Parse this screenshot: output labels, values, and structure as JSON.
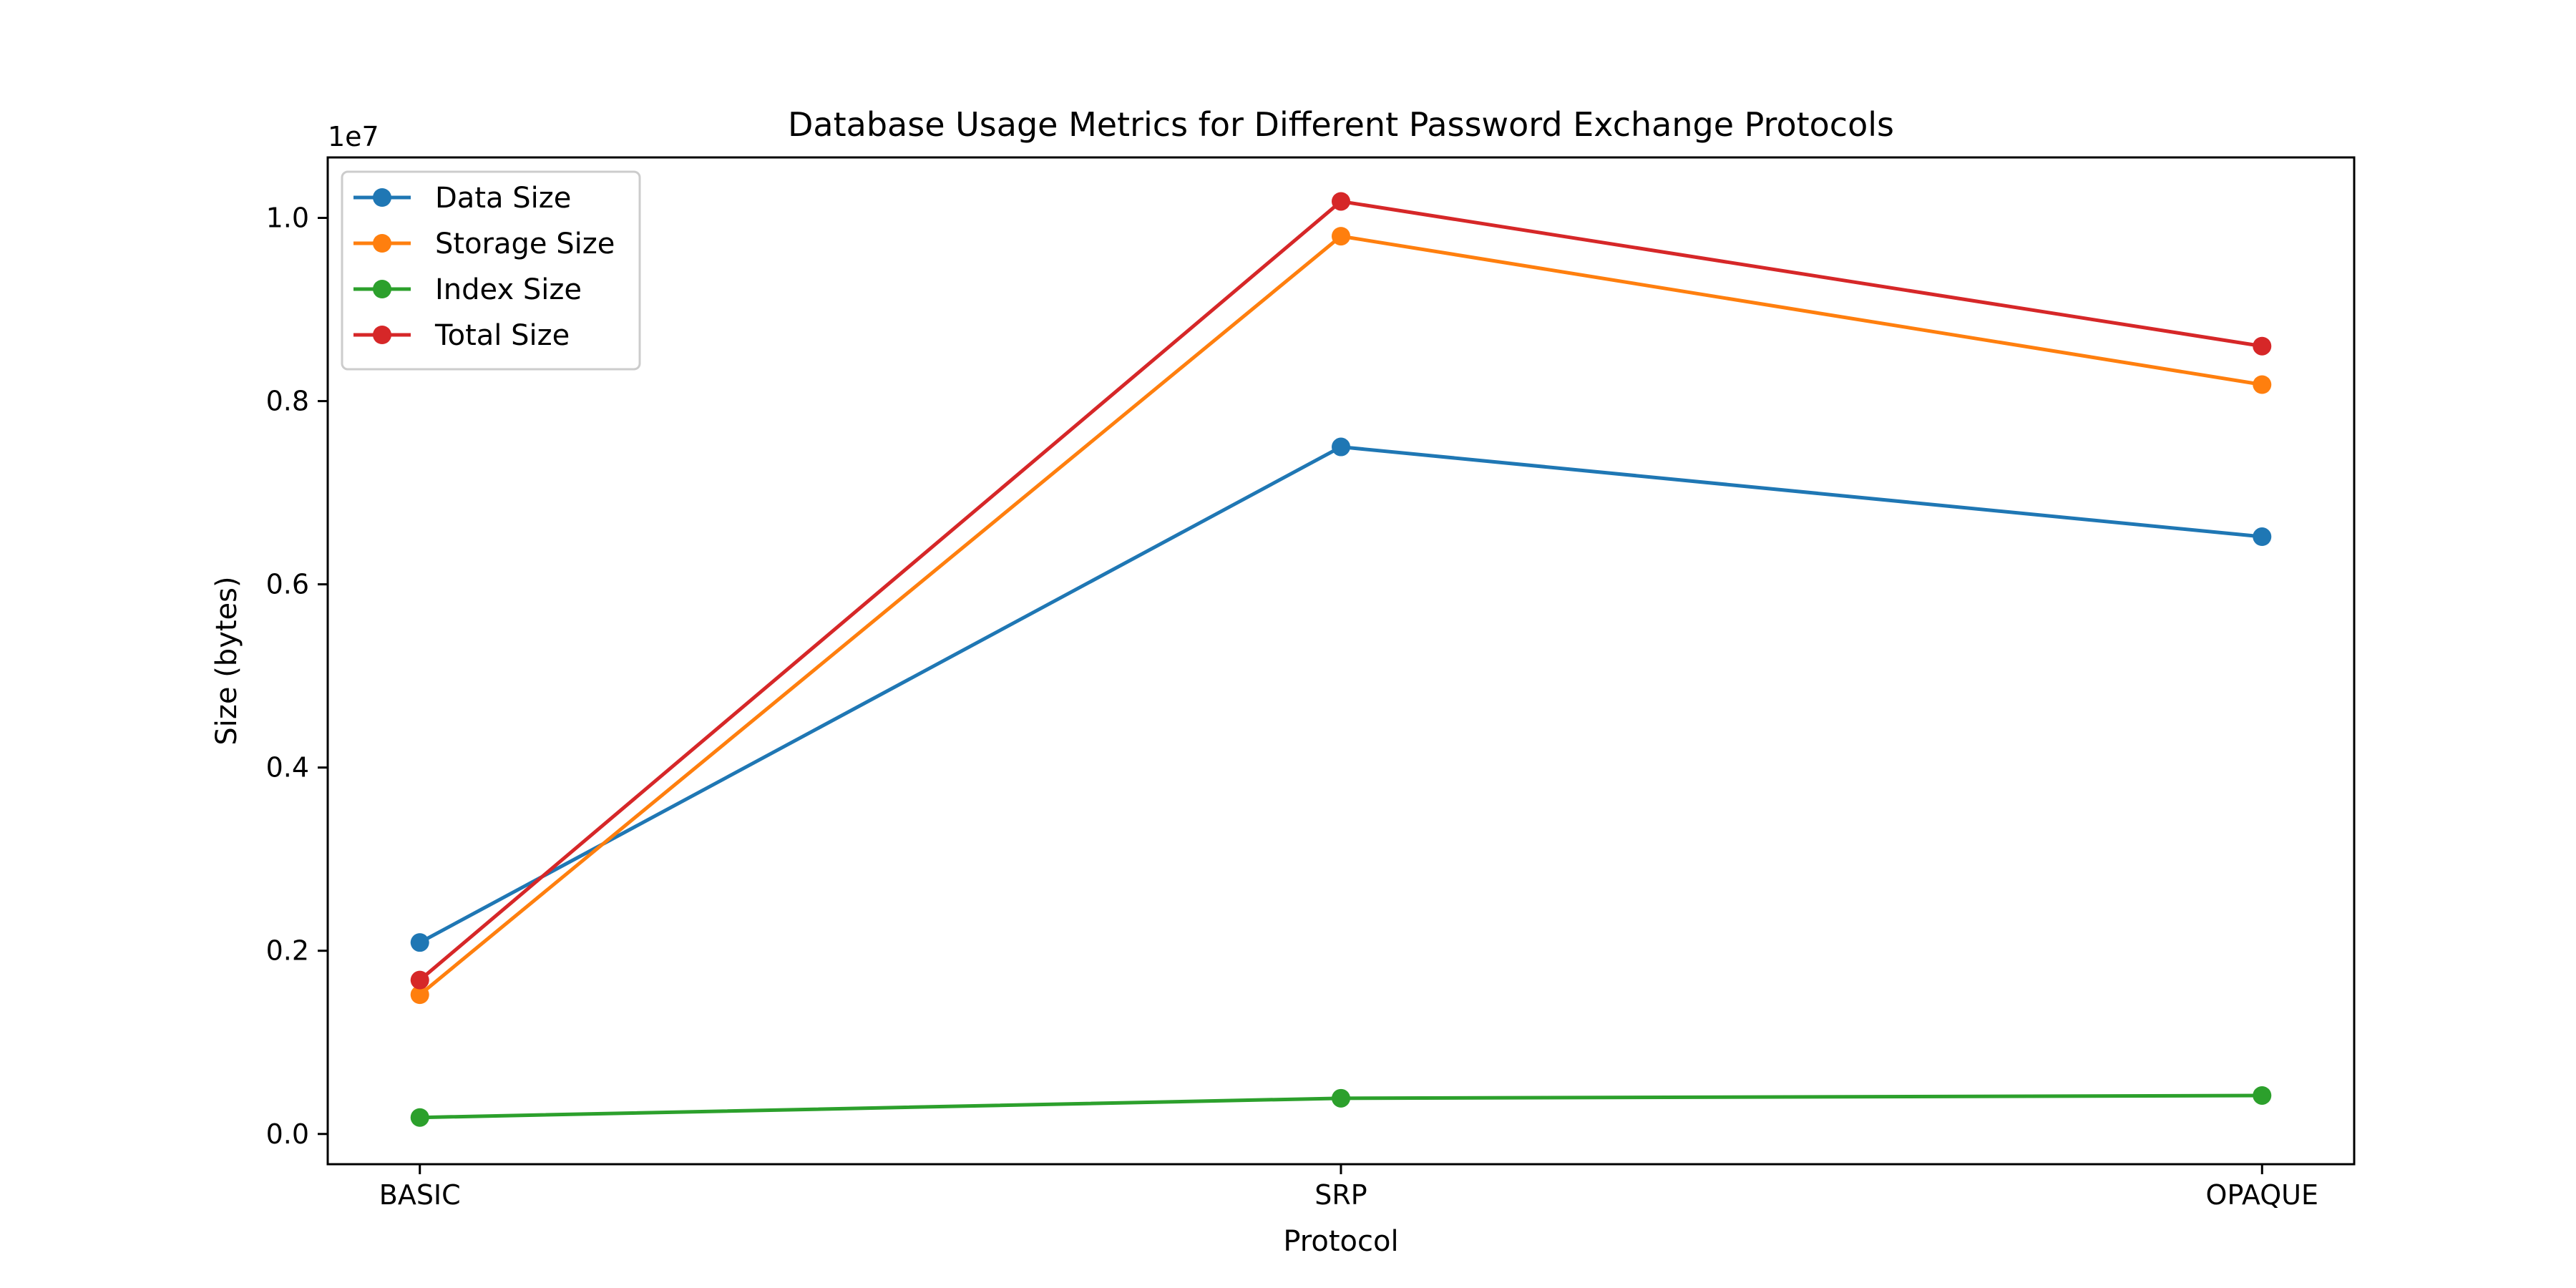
{
  "chart_data": {
    "type": "line",
    "title": "Database Usage Metrics for Different Password Exchange Protocols",
    "xlabel": "Protocol",
    "ylabel": "Size (bytes)",
    "y_offset_text": "1e7",
    "categories": [
      "BASIC",
      "SRP",
      "OPAQUE"
    ],
    "ylim": [
      -0.033,
      1.066
    ],
    "yticks": [
      0.0,
      0.2,
      0.4,
      0.6,
      0.8,
      1.0
    ],
    "ytick_labels": [
      "0.0",
      "0.2",
      "0.4",
      "0.6",
      "0.8",
      "1.0"
    ],
    "y_scale_factor": 10000000,
    "grid": false,
    "legend_position": "top-left",
    "marker": "circle",
    "series": [
      {
        "name": "Data Size",
        "color": "#1f77b4",
        "values": [
          0.209,
          0.75,
          0.652
        ]
      },
      {
        "name": "Storage Size",
        "color": "#ff7f0e",
        "values": [
          0.152,
          0.98,
          0.818
        ]
      },
      {
        "name": "Index Size",
        "color": "#2ca02c",
        "values": [
          0.018,
          0.039,
          0.042
        ]
      },
      {
        "name": "Total Size",
        "color": "#d62728",
        "values": [
          0.168,
          1.018,
          0.86
        ]
      }
    ]
  }
}
